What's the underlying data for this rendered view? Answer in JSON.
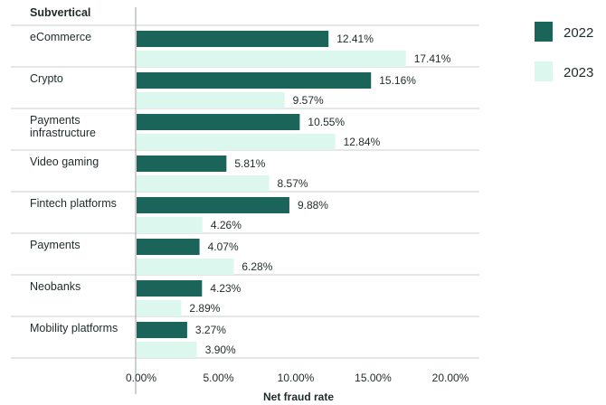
{
  "chart_data": {
    "type": "bar",
    "orientation": "horizontal",
    "category_header": "Subvertical",
    "xlabel": "Net fraud rate",
    "xlim": [
      0,
      20
    ],
    "xticks": [
      0,
      5,
      10,
      15,
      20
    ],
    "xtick_labels": [
      "0.00%",
      "5.00%",
      "10.00%",
      "15.00%",
      "20.00%"
    ],
    "categories": [
      [
        "eCommerce"
      ],
      [
        "Crypto"
      ],
      [
        "Payments",
        "infrastructure"
      ],
      [
        "Video gaming"
      ],
      [
        "Fintech platforms"
      ],
      [
        "Payments"
      ],
      [
        "Neobanks"
      ],
      [
        "Mobility platforms"
      ]
    ],
    "series": [
      {
        "name": "2022",
        "color": "#1a6459",
        "values": [
          12.41,
          15.16,
          10.55,
          5.81,
          9.88,
          4.07,
          4.23,
          3.27
        ],
        "labels": [
          "12.41%",
          "15.16%",
          "10.55%",
          "5.81%",
          "9.88%",
          "4.07%",
          "4.23%",
          "3.27%"
        ]
      },
      {
        "name": "2023",
        "color": "#dcf8ee",
        "values": [
          17.41,
          9.57,
          12.84,
          8.57,
          4.26,
          6.28,
          2.89,
          3.9
        ],
        "labels": [
          "17.41%",
          "9.57%",
          "12.84%",
          "8.57%",
          "4.26%",
          "6.28%",
          "2.89%",
          "3.90%"
        ]
      }
    ],
    "legend_position": "right",
    "grid": false
  },
  "colors": {
    "axis": "#9aa5a3",
    "separator": "#c9cfce",
    "text": "#1f2a2a"
  }
}
